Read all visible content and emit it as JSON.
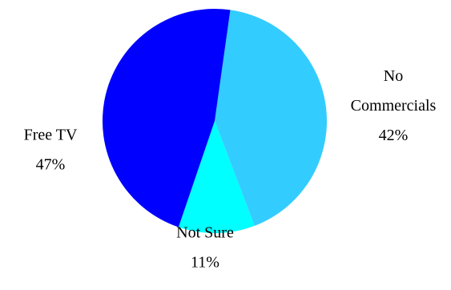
{
  "chart_data": {
    "type": "pie",
    "title": "",
    "slices": [
      {
        "label": "No Commercials",
        "label_lines": [
          "No",
          "Commercials"
        ],
        "value": 42,
        "display": "42%",
        "color": "#33ccff"
      },
      {
        "label": "Not Sure",
        "label_lines": [
          "Not Sure"
        ],
        "value": 11,
        "display": "11%",
        "color": "#00ffff"
      },
      {
        "label": "Free TV",
        "label_lines": [
          "Free TV"
        ],
        "value": 47,
        "display": "47%",
        "color": "#0000ff"
      }
    ],
    "legend": "none"
  }
}
